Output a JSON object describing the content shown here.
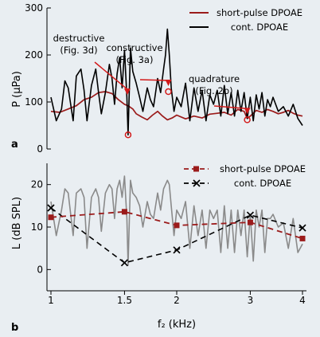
{
  "chart_data": [
    {
      "type": "line",
      "panel_label": "a",
      "ylabel": "P (μPa)",
      "ylim": [
        0,
        300
      ],
      "yticks": [
        0,
        100,
        200,
        300
      ],
      "grid": false,
      "legend": "top-right",
      "colors": {
        "short_pulse": "#9b1b1b",
        "cont": "#000000",
        "annotation": "#d31a1a"
      },
      "series": [
        {
          "name": "short-pulse DPOAE",
          "x": [
            1.0,
            1.05,
            1.1,
            1.15,
            1.2,
            1.25,
            1.3,
            1.35,
            1.4,
            1.45,
            1.5,
            1.53,
            1.57,
            1.6,
            1.65,
            1.7,
            1.75,
            1.8,
            1.85,
            1.9,
            1.95,
            2.0,
            2.1,
            2.2,
            2.3,
            2.4,
            2.5,
            2.6,
            2.7,
            2.8,
            2.9,
            2.95,
            3.0,
            3.1,
            3.2,
            3.3,
            3.4,
            3.5,
            3.6,
            3.7,
            3.8,
            3.9,
            4.0
          ],
          "values": [
            80,
            78,
            85,
            92,
            105,
            110,
            120,
            122,
            118,
            105,
            95,
            92,
            85,
            75,
            68,
            62,
            72,
            80,
            70,
            62,
            66,
            72,
            64,
            70,
            66,
            74,
            76,
            78,
            72,
            84,
            80,
            65,
            70,
            82,
            78,
            84,
            80,
            75,
            78,
            82,
            76,
            72,
            70
          ]
        },
        {
          "name": "cont. DPOAE",
          "x": [
            1.0,
            1.03,
            1.06,
            1.08,
            1.1,
            1.13,
            1.15,
            1.18,
            1.2,
            1.22,
            1.25,
            1.28,
            1.3,
            1.32,
            1.35,
            1.38,
            1.4,
            1.42,
            1.44,
            1.46,
            1.48,
            1.5,
            1.52,
            1.53,
            1.55,
            1.57,
            1.6,
            1.63,
            1.66,
            1.7,
            1.73,
            1.76,
            1.8,
            1.83,
            1.86,
            1.88,
            1.9,
            1.92,
            1.94,
            1.97,
            2.0,
            2.05,
            2.1,
            2.15,
            2.2,
            2.25,
            2.3,
            2.35,
            2.4,
            2.45,
            2.5,
            2.55,
            2.6,
            2.65,
            2.7,
            2.75,
            2.8,
            2.85,
            2.9,
            2.95,
            3.0,
            3.05,
            3.1,
            3.15,
            3.2,
            3.25,
            3.3,
            3.35,
            3.4,
            3.5,
            3.6,
            3.7,
            3.8,
            3.9,
            4.0
          ],
          "values": [
            110,
            60,
            85,
            145,
            130,
            60,
            155,
            170,
            125,
            60,
            135,
            170,
            120,
            75,
            120,
            180,
            150,
            95,
            160,
            195,
            130,
            210,
            110,
            30,
            215,
            165,
            140,
            110,
            80,
            130,
            105,
            90,
            150,
            120,
            170,
            200,
            255,
            200,
            130,
            80,
            110,
            90,
            140,
            60,
            130,
            80,
            125,
            60,
            115,
            95,
            125,
            70,
            135,
            75,
            120,
            70,
            125,
            80,
            120,
            65,
            110,
            60,
            115,
            85,
            120,
            70,
            105,
            90,
            110,
            80,
            90,
            70,
            95,
            65,
            50
          ]
        }
      ],
      "annotations": [
        {
          "label": "destructive",
          "sublabel": "(Fig. 3d)",
          "x": 1.53,
          "y": 30
        },
        {
          "label": "constructive",
          "sublabel": "(Fig. 3a)",
          "x": 1.91,
          "y": 122
        },
        {
          "label": "quadrature",
          "sublabel": "(Fig. 2b)",
          "x": 2.95,
          "y": 62
        }
      ]
    },
    {
      "type": "line",
      "panel_label": "b",
      "xlabel": "f₂ (kHz)",
      "ylabel": "L (dB SPL)",
      "x_scale": "log",
      "xlim": [
        1,
        4
      ],
      "xticks": [
        1,
        1.5,
        2,
        3,
        4
      ],
      "xticklabels": [
        "1",
        "1.5",
        "2",
        "3",
        "4"
      ],
      "ylim": [
        -5,
        25
      ],
      "yticks": [
        0,
        10,
        20
      ],
      "grid": false,
      "legend": "top-right",
      "colors": {
        "short_pulse": "#9b1b1b",
        "cont": "#000000",
        "fine_structure": "#8a8a8a"
      },
      "series": [
        {
          "name": "short-pulse DPOAE",
          "x": [
            1,
            1.5,
            2,
            3,
            4
          ],
          "values": [
            12.3,
            13.6,
            10.4,
            11.1,
            7.3
          ]
        },
        {
          "name": "cont. DPOAE",
          "x": [
            1,
            1.5,
            2,
            3,
            4
          ],
          "values": [
            14.5,
            1.6,
            4.6,
            12.8,
            9.8
          ]
        },
        {
          "x": [
            1.0,
            1.03,
            1.06,
            1.08,
            1.1,
            1.13,
            1.15,
            1.18,
            1.2,
            1.22,
            1.25,
            1.28,
            1.3,
            1.32,
            1.35,
            1.38,
            1.4,
            1.42,
            1.44,
            1.46,
            1.48,
            1.5,
            1.52,
            1.53,
            1.55,
            1.57,
            1.6,
            1.63,
            1.66,
            1.7,
            1.73,
            1.76,
            1.8,
            1.83,
            1.86,
            1.88,
            1.9,
            1.92,
            1.94,
            1.97,
            2.0,
            2.05,
            2.1,
            2.15,
            2.2,
            2.25,
            2.3,
            2.35,
            2.4,
            2.45,
            2.5,
            2.55,
            2.6,
            2.65,
            2.7,
            2.75,
            2.8,
            2.85,
            2.9,
            2.95,
            3.0,
            3.05,
            3.1,
            3.15,
            3.2,
            3.25,
            3.3,
            3.35,
            3.4,
            3.5,
            3.6,
            3.7,
            3.8,
            3.9,
            4.0
          ],
          "values": [
            16,
            8,
            14,
            19,
            18,
            8,
            18,
            19,
            17,
            5,
            17,
            19,
            17,
            9,
            18,
            20,
            19,
            12,
            19,
            21,
            17,
            22,
            12,
            1,
            21,
            18,
            17,
            15,
            10,
            16,
            13,
            12,
            18,
            14,
            19,
            20,
            21,
            20,
            15,
            8,
            14,
            12,
            16,
            5,
            15,
            8,
            14,
            5,
            14,
            12,
            14,
            4,
            15,
            5,
            14,
            4,
            14,
            8,
            14,
            3,
            13,
            2,
            14,
            10,
            14,
            4,
            12,
            12,
            13,
            10,
            11,
            5,
            12,
            4,
            6
          ]
        }
      ]
    }
  ]
}
